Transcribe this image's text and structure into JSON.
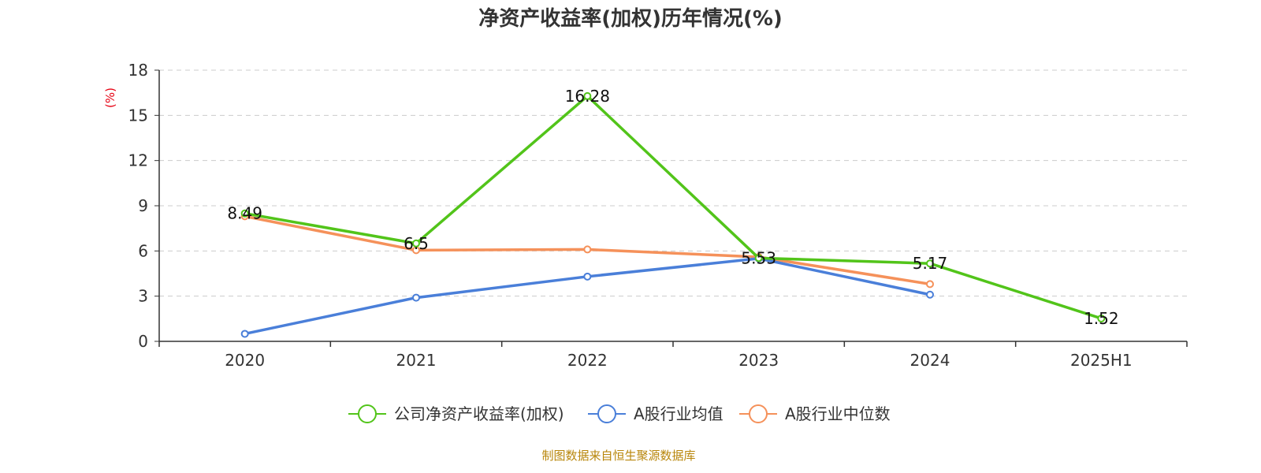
{
  "chart_data": {
    "type": "line",
    "title": "净资产收益率(加权)历年情况(%)",
    "ylabel": "(%)",
    "xlabel": "",
    "categories": [
      "2020",
      "2021",
      "2022",
      "2023",
      "2024",
      "2025H1"
    ],
    "yticks": [
      "0",
      "3",
      "6",
      "9",
      "12",
      "15",
      "18"
    ],
    "ylim": [
      0,
      18
    ],
    "grid": true,
    "legend_position": "bottom",
    "series": [
      {
        "name": "公司净资产收益率(加权)",
        "color": "#52c41a",
        "values": [
          8.49,
          6.5,
          16.28,
          5.53,
          5.17,
          1.52
        ],
        "labels": [
          "8.49",
          "6.5",
          "16.28",
          "5.53",
          "5.17",
          "1.52"
        ]
      },
      {
        "name": "A股行业均值",
        "color": "#4a7fd9",
        "values": [
          0.5,
          2.9,
          4.3,
          5.5,
          3.1,
          null
        ],
        "labels": null
      },
      {
        "name": "A股行业中位数",
        "color": "#f5915a",
        "values": [
          8.3,
          6.05,
          6.1,
          5.6,
          3.8,
          null
        ],
        "labels": null
      }
    ],
    "source": "制图数据来自恒生聚源数据库"
  }
}
